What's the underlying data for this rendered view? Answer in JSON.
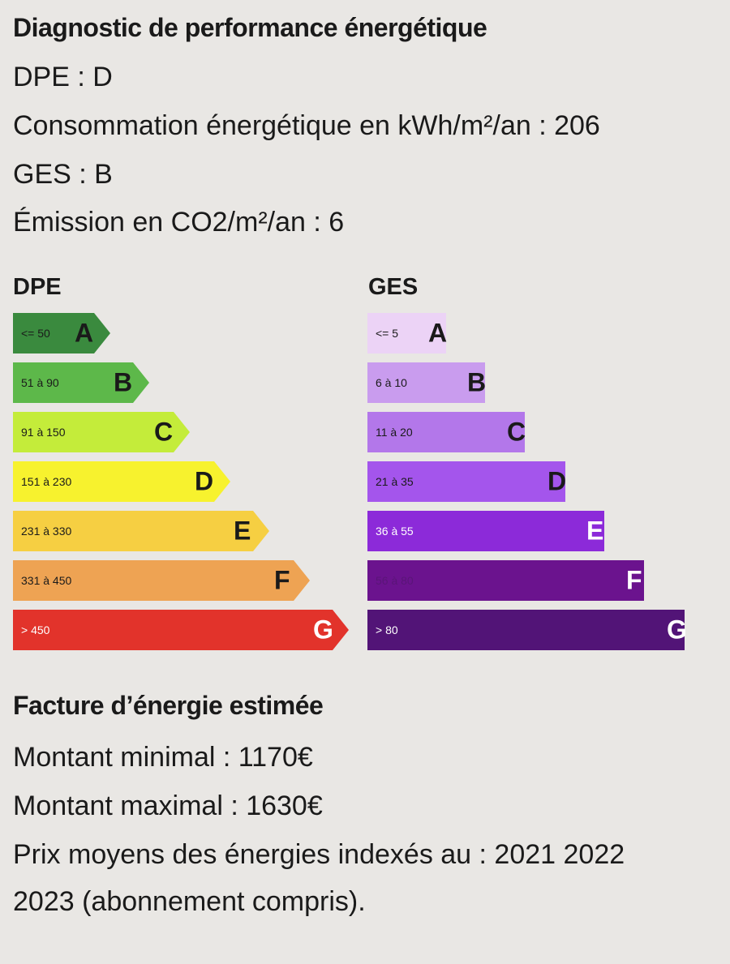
{
  "dpe_section": {
    "title": "Diagnostic de performance énergétique",
    "dpe_line": "DPE : D",
    "consumption_line": "Consommation énergétique en kWh/m²/an : 206",
    "ges_line": "GES : B",
    "emission_line": "Émission en CO2/m²/an : 6"
  },
  "scales": {
    "dpe": {
      "title": "DPE",
      "current_class": "D",
      "bars": [
        {
          "range": "<= 50",
          "letter": "A",
          "color": "#3a8a3e",
          "text_color": "#1a1a1a",
          "range_color": "#1a1a1a"
        },
        {
          "range": "51 à 90",
          "letter": "B",
          "color": "#5db84a",
          "text_color": "#1a1a1a",
          "range_color": "#1a1a1a"
        },
        {
          "range": "91 à 150",
          "letter": "C",
          "color": "#c4ec3a",
          "text_color": "#1a1a1a",
          "range_color": "#1a1a1a"
        },
        {
          "range": "151 à 230",
          "letter": "D",
          "color": "#f7f22e",
          "text_color": "#1a1a1a",
          "range_color": "#1a1a1a"
        },
        {
          "range": "231 à 330",
          "letter": "E",
          "color": "#f6cf42",
          "text_color": "#1a1a1a",
          "range_color": "#1a1a1a"
        },
        {
          "range": "331 à 450",
          "letter": "F",
          "color": "#eea353",
          "text_color": "#1a1a1a",
          "range_color": "#1a1a1a"
        },
        {
          "range": "> 450",
          "letter": "G",
          "color": "#e2332b",
          "text_color": "#ffffff",
          "range_color": "#ffffff"
        }
      ]
    },
    "ges": {
      "title": "GES",
      "current_class": "B",
      "bars": [
        {
          "range": "<= 5",
          "letter": "A",
          "color": "#ecd3f6",
          "text_color": "#1a1a1a",
          "range_color": "#1a1a1a"
        },
        {
          "range": "6 à 10",
          "letter": "B",
          "color": "#c99cee",
          "text_color": "#1a1a1a",
          "range_color": "#1a1a1a"
        },
        {
          "range": "11 à 20",
          "letter": "C",
          "color": "#b377ea",
          "text_color": "#1a1a1a",
          "range_color": "#1a1a1a"
        },
        {
          "range": "21 à 35",
          "letter": "D",
          "color": "#a455ec",
          "text_color": "#1a1a1a",
          "range_color": "#1a1a1a"
        },
        {
          "range": "36 à 55",
          "letter": "E",
          "color": "#8c2ad9",
          "text_color": "#ffffff",
          "range_color": "#ffffff"
        },
        {
          "range": "56 à 80",
          "letter": "F",
          "color": "#6b138e",
          "text_color": "#ffffff",
          "range_color": "#5a1578"
        },
        {
          "range": "> 80",
          "letter": "G",
          "color": "#521477",
          "text_color": "#ffffff",
          "range_color": "#ffffff"
        }
      ]
    }
  },
  "bill_section": {
    "title": "Facture d’énergie estimée",
    "min_line": "Montant minimal : 1170€",
    "max_line": "Montant maximal : 1630€",
    "prices_line_1": "Prix moyens des énergies indexés au : 2021 2022",
    "prices_line_2": "2023 (abonnement compris)."
  }
}
